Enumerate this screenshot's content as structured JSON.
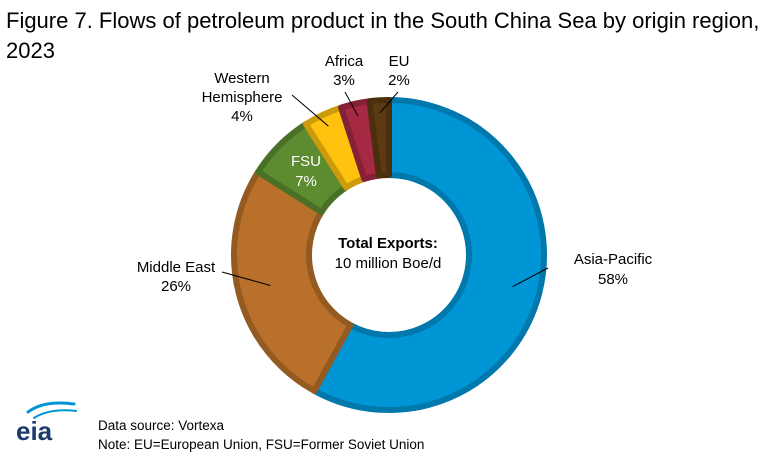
{
  "figure": {
    "title": "Figure 7. Flows of petroleum product in the South China Sea by origin region, 2023"
  },
  "chart_data": {
    "type": "pie",
    "variant": "donut",
    "center_label": {
      "line1": "Total Exports:",
      "line2": "10 million Boe/d"
    },
    "slices": [
      {
        "name": "Asia-Pacific",
        "value": 58,
        "label": "58%",
        "color": "#0096D6"
      },
      {
        "name": "Middle East",
        "value": 26,
        "label": "26%",
        "color": "#B8702A"
      },
      {
        "name": "FSU",
        "value": 7,
        "label": "7%",
        "color": "#5D8B2F"
      },
      {
        "name": "Western Hemisphere",
        "value": 4,
        "label": "4%",
        "color": "#FFC20E"
      },
      {
        "name": "Africa",
        "value": 3,
        "label": "3%",
        "color": "#A62943"
      },
      {
        "name": "EU",
        "value": 2,
        "label": "2%",
        "color": "#5E3A12"
      }
    ]
  },
  "footer": {
    "logo_text": "eia",
    "source": "Data source: Vortexa",
    "note": "Note: EU=European Union, FSU=Former Soviet Union"
  }
}
